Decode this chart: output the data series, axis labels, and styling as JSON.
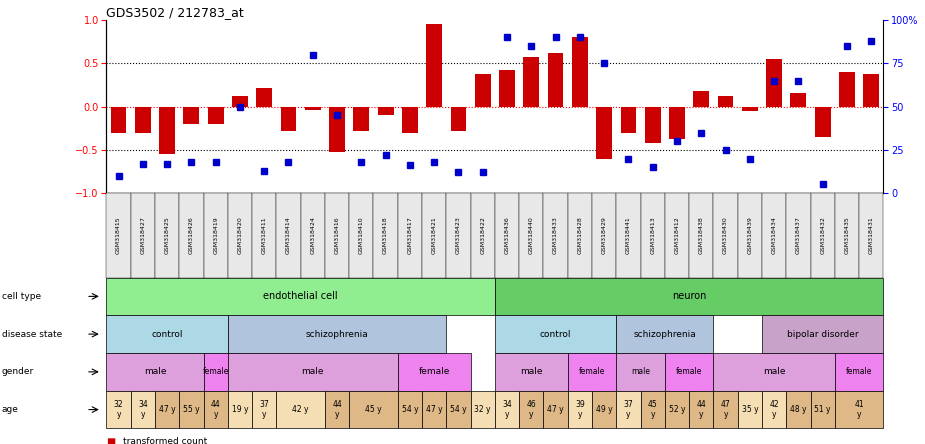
{
  "title": "GDS3502 / 212783_at",
  "samples": [
    "GSM318415",
    "GSM318427",
    "GSM318425",
    "GSM318426",
    "GSM318419",
    "GSM318420",
    "GSM318411",
    "GSM318414",
    "GSM318424",
    "GSM318416",
    "GSM318410",
    "GSM318418",
    "GSM318417",
    "GSM318421",
    "GSM318423",
    "GSM318422",
    "GSM318436",
    "GSM318440",
    "GSM318433",
    "GSM318428",
    "GSM318429",
    "GSM318441",
    "GSM318413",
    "GSM318412",
    "GSM318438",
    "GSM318430",
    "GSM318439",
    "GSM318434",
    "GSM318437",
    "GSM318432",
    "GSM318435",
    "GSM318431"
  ],
  "bar_values": [
    -0.3,
    -0.3,
    -0.55,
    -0.2,
    -0.2,
    0.12,
    0.22,
    -0.28,
    -0.04,
    -0.53,
    -0.28,
    -0.1,
    -0.3,
    0.95,
    -0.28,
    0.38,
    0.42,
    0.57,
    0.62,
    0.8,
    -0.6,
    -0.3,
    -0.42,
    -0.38,
    0.18,
    0.12,
    -0.05,
    0.55,
    0.16,
    -0.35,
    0.4,
    0.38
  ],
  "blue_values": [
    10,
    17,
    17,
    18,
    18,
    50,
    13,
    18,
    80,
    45,
    18,
    22,
    16,
    18,
    12,
    12,
    90,
    85,
    90,
    90,
    75,
    20,
    15,
    30,
    35,
    25,
    20,
    65,
    65,
    5,
    85,
    88
  ],
  "cell_type": [
    {
      "label": "endothelial cell",
      "start": 0,
      "end": 16,
      "color": "#90EE90"
    },
    {
      "label": "neuron",
      "start": 16,
      "end": 32,
      "color": "#66CC66"
    }
  ],
  "disease_state": [
    {
      "label": "control",
      "start": 0,
      "end": 5,
      "color": "#ADD8E6"
    },
    {
      "label": "schizophrenia",
      "start": 5,
      "end": 14,
      "color": "#B0C4DE"
    },
    {
      "label": "control",
      "start": 16,
      "end": 21,
      "color": "#ADD8E6"
    },
    {
      "label": "schizophrenia",
      "start": 21,
      "end": 25,
      "color": "#B0C4DE"
    },
    {
      "label": "bipolar disorder",
      "start": 27,
      "end": 32,
      "color": "#C8A2C8"
    }
  ],
  "gender": [
    {
      "label": "male",
      "start": 0,
      "end": 4,
      "color": "#DDA0DD"
    },
    {
      "label": "female",
      "start": 4,
      "end": 5,
      "color": "#EE82EE"
    },
    {
      "label": "male",
      "start": 5,
      "end": 12,
      "color": "#DDA0DD"
    },
    {
      "label": "female",
      "start": 12,
      "end": 15,
      "color": "#EE82EE"
    },
    {
      "label": "male",
      "start": 16,
      "end": 19,
      "color": "#DDA0DD"
    },
    {
      "label": "female",
      "start": 19,
      "end": 21,
      "color": "#EE82EE"
    },
    {
      "label": "male",
      "start": 21,
      "end": 23,
      "color": "#DDA0DD"
    },
    {
      "label": "female",
      "start": 23,
      "end": 25,
      "color": "#EE82EE"
    },
    {
      "label": "male",
      "start": 25,
      "end": 30,
      "color": "#DDA0DD"
    },
    {
      "label": "female",
      "start": 30,
      "end": 32,
      "color": "#EE82EE"
    }
  ],
  "age_data": [
    {
      "label": "32\ny",
      "start": 0,
      "end": 1,
      "color": "#F5DEB3"
    },
    {
      "label": "34\ny",
      "start": 1,
      "end": 2,
      "color": "#F5DEB3"
    },
    {
      "label": "47 y",
      "start": 2,
      "end": 3,
      "color": "#DEB887"
    },
    {
      "label": "55 y",
      "start": 3,
      "end": 4,
      "color": "#DEB887"
    },
    {
      "label": "44\ny",
      "start": 4,
      "end": 5,
      "color": "#DEB887"
    },
    {
      "label": "19 y",
      "start": 5,
      "end": 6,
      "color": "#F5DEB3"
    },
    {
      "label": "37\ny",
      "start": 6,
      "end": 7,
      "color": "#F5DEB3"
    },
    {
      "label": "42 y",
      "start": 7,
      "end": 9,
      "color": "#F5DEB3"
    },
    {
      "label": "44\ny",
      "start": 9,
      "end": 10,
      "color": "#DEB887"
    },
    {
      "label": "45 y",
      "start": 10,
      "end": 12,
      "color": "#DEB887"
    },
    {
      "label": "54 y",
      "start": 12,
      "end": 13,
      "color": "#DEB887"
    },
    {
      "label": "47 y",
      "start": 13,
      "end": 14,
      "color": "#DEB887"
    },
    {
      "label": "54 y",
      "start": 14,
      "end": 15,
      "color": "#DEB887"
    },
    {
      "label": "32 y",
      "start": 15,
      "end": 16,
      "color": "#F5DEB3"
    },
    {
      "label": "34\ny",
      "start": 16,
      "end": 17,
      "color": "#F5DEB3"
    },
    {
      "label": "46\ny",
      "start": 17,
      "end": 18,
      "color": "#DEB887"
    },
    {
      "label": "47 y",
      "start": 18,
      "end": 19,
      "color": "#DEB887"
    },
    {
      "label": "39\ny",
      "start": 19,
      "end": 20,
      "color": "#F5DEB3"
    },
    {
      "label": "49 y",
      "start": 20,
      "end": 21,
      "color": "#DEB887"
    },
    {
      "label": "37\ny",
      "start": 21,
      "end": 22,
      "color": "#F5DEB3"
    },
    {
      "label": "45\ny",
      "start": 22,
      "end": 23,
      "color": "#DEB887"
    },
    {
      "label": "52 y",
      "start": 23,
      "end": 24,
      "color": "#DEB887"
    },
    {
      "label": "44\ny",
      "start": 24,
      "end": 25,
      "color": "#DEB887"
    },
    {
      "label": "47\ny",
      "start": 25,
      "end": 26,
      "color": "#DEB887"
    },
    {
      "label": "35 y",
      "start": 26,
      "end": 27,
      "color": "#F5DEB3"
    },
    {
      "label": "42\ny",
      "start": 27,
      "end": 28,
      "color": "#F5DEB3"
    },
    {
      "label": "48 y",
      "start": 28,
      "end": 29,
      "color": "#DEB887"
    },
    {
      "label": "51 y",
      "start": 29,
      "end": 30,
      "color": "#DEB887"
    },
    {
      "label": "41\ny",
      "start": 30,
      "end": 32,
      "color": "#DEB887"
    }
  ],
  "bar_color": "#CC0000",
  "blue_color": "#0000CC",
  "ylim_left": [
    -1,
    1
  ],
  "ylim_right": [
    0,
    100
  ],
  "yticks_left": [
    -1,
    -0.5,
    0,
    0.5,
    1
  ],
  "yticks_right": [
    0,
    25,
    50,
    75,
    100
  ]
}
